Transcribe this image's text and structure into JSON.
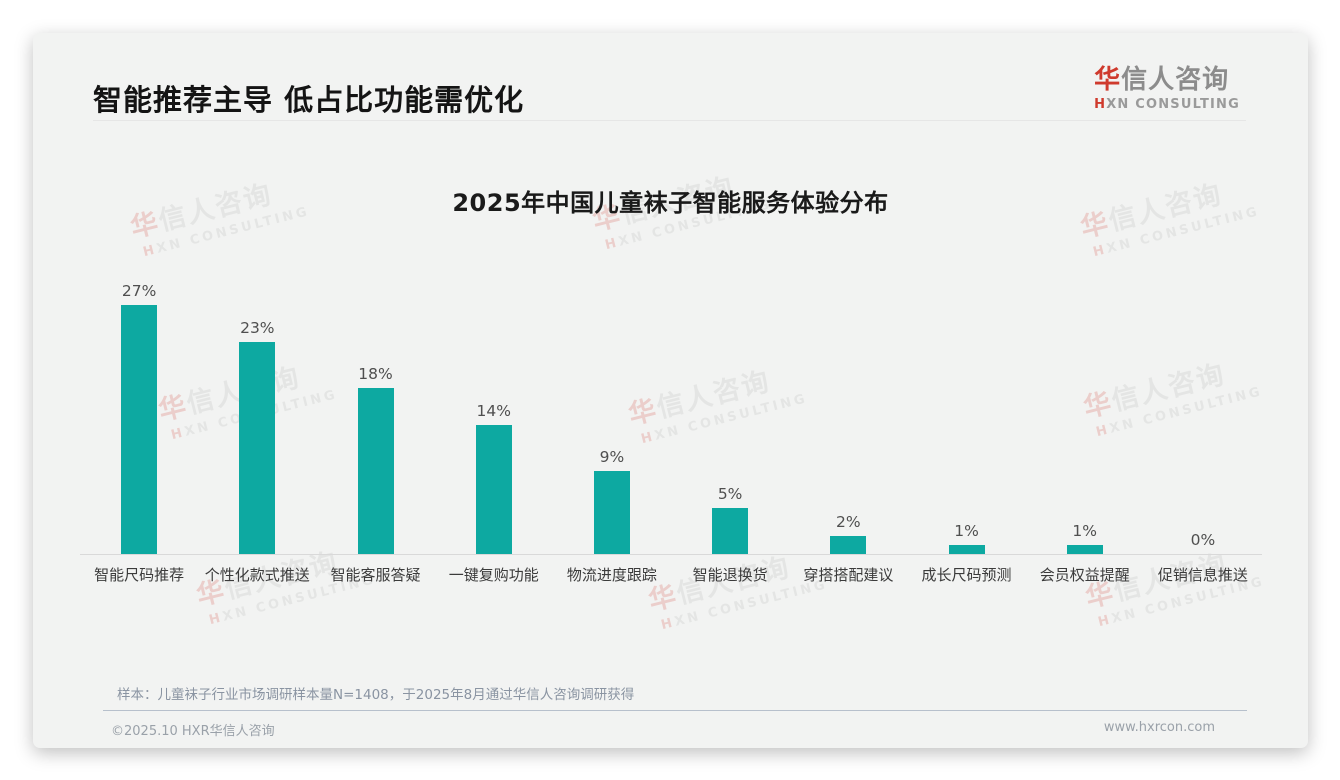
{
  "header": {
    "title": "智能推荐主导 低占比功能需优化",
    "logo": {
      "cn_first": "华",
      "cn_rest": "信人咨询",
      "en_first": "H",
      "en_rest": "XN CONSULTING"
    }
  },
  "chart_data": {
    "type": "bar",
    "title": "2025年中国儿童袜子智能服务体验分布",
    "categories": [
      "智能尺码推荐",
      "个性化款式推送",
      "智能客服答疑",
      "一键复购功能",
      "物流进度跟踪",
      "智能退换货",
      "穿搭搭配建议",
      "成长尺码预测",
      "会员权益提醒",
      "促销信息推送"
    ],
    "values": [
      27,
      23,
      18,
      14,
      9,
      5,
      2,
      1,
      1,
      0
    ],
    "labels": [
      "27%",
      "23%",
      "18%",
      "14%",
      "9%",
      "5%",
      "2%",
      "1%",
      "1%",
      "0%"
    ],
    "bar_color": "#0da9a1",
    "xlabel": "",
    "ylabel": "",
    "ylim": [
      0,
      27
    ],
    "grid": false,
    "legend": false
  },
  "watermark": {
    "cn": "华信人咨询",
    "en": "HXN CONSULTING"
  },
  "note": "样本：儿童袜子行业市场调研样本量N=1408，于2025年8月通过华信人咨询调研获得",
  "footer": {
    "copyright": "©2025.10 HXR华信人咨询",
    "website": "www.hxrcon.com"
  }
}
